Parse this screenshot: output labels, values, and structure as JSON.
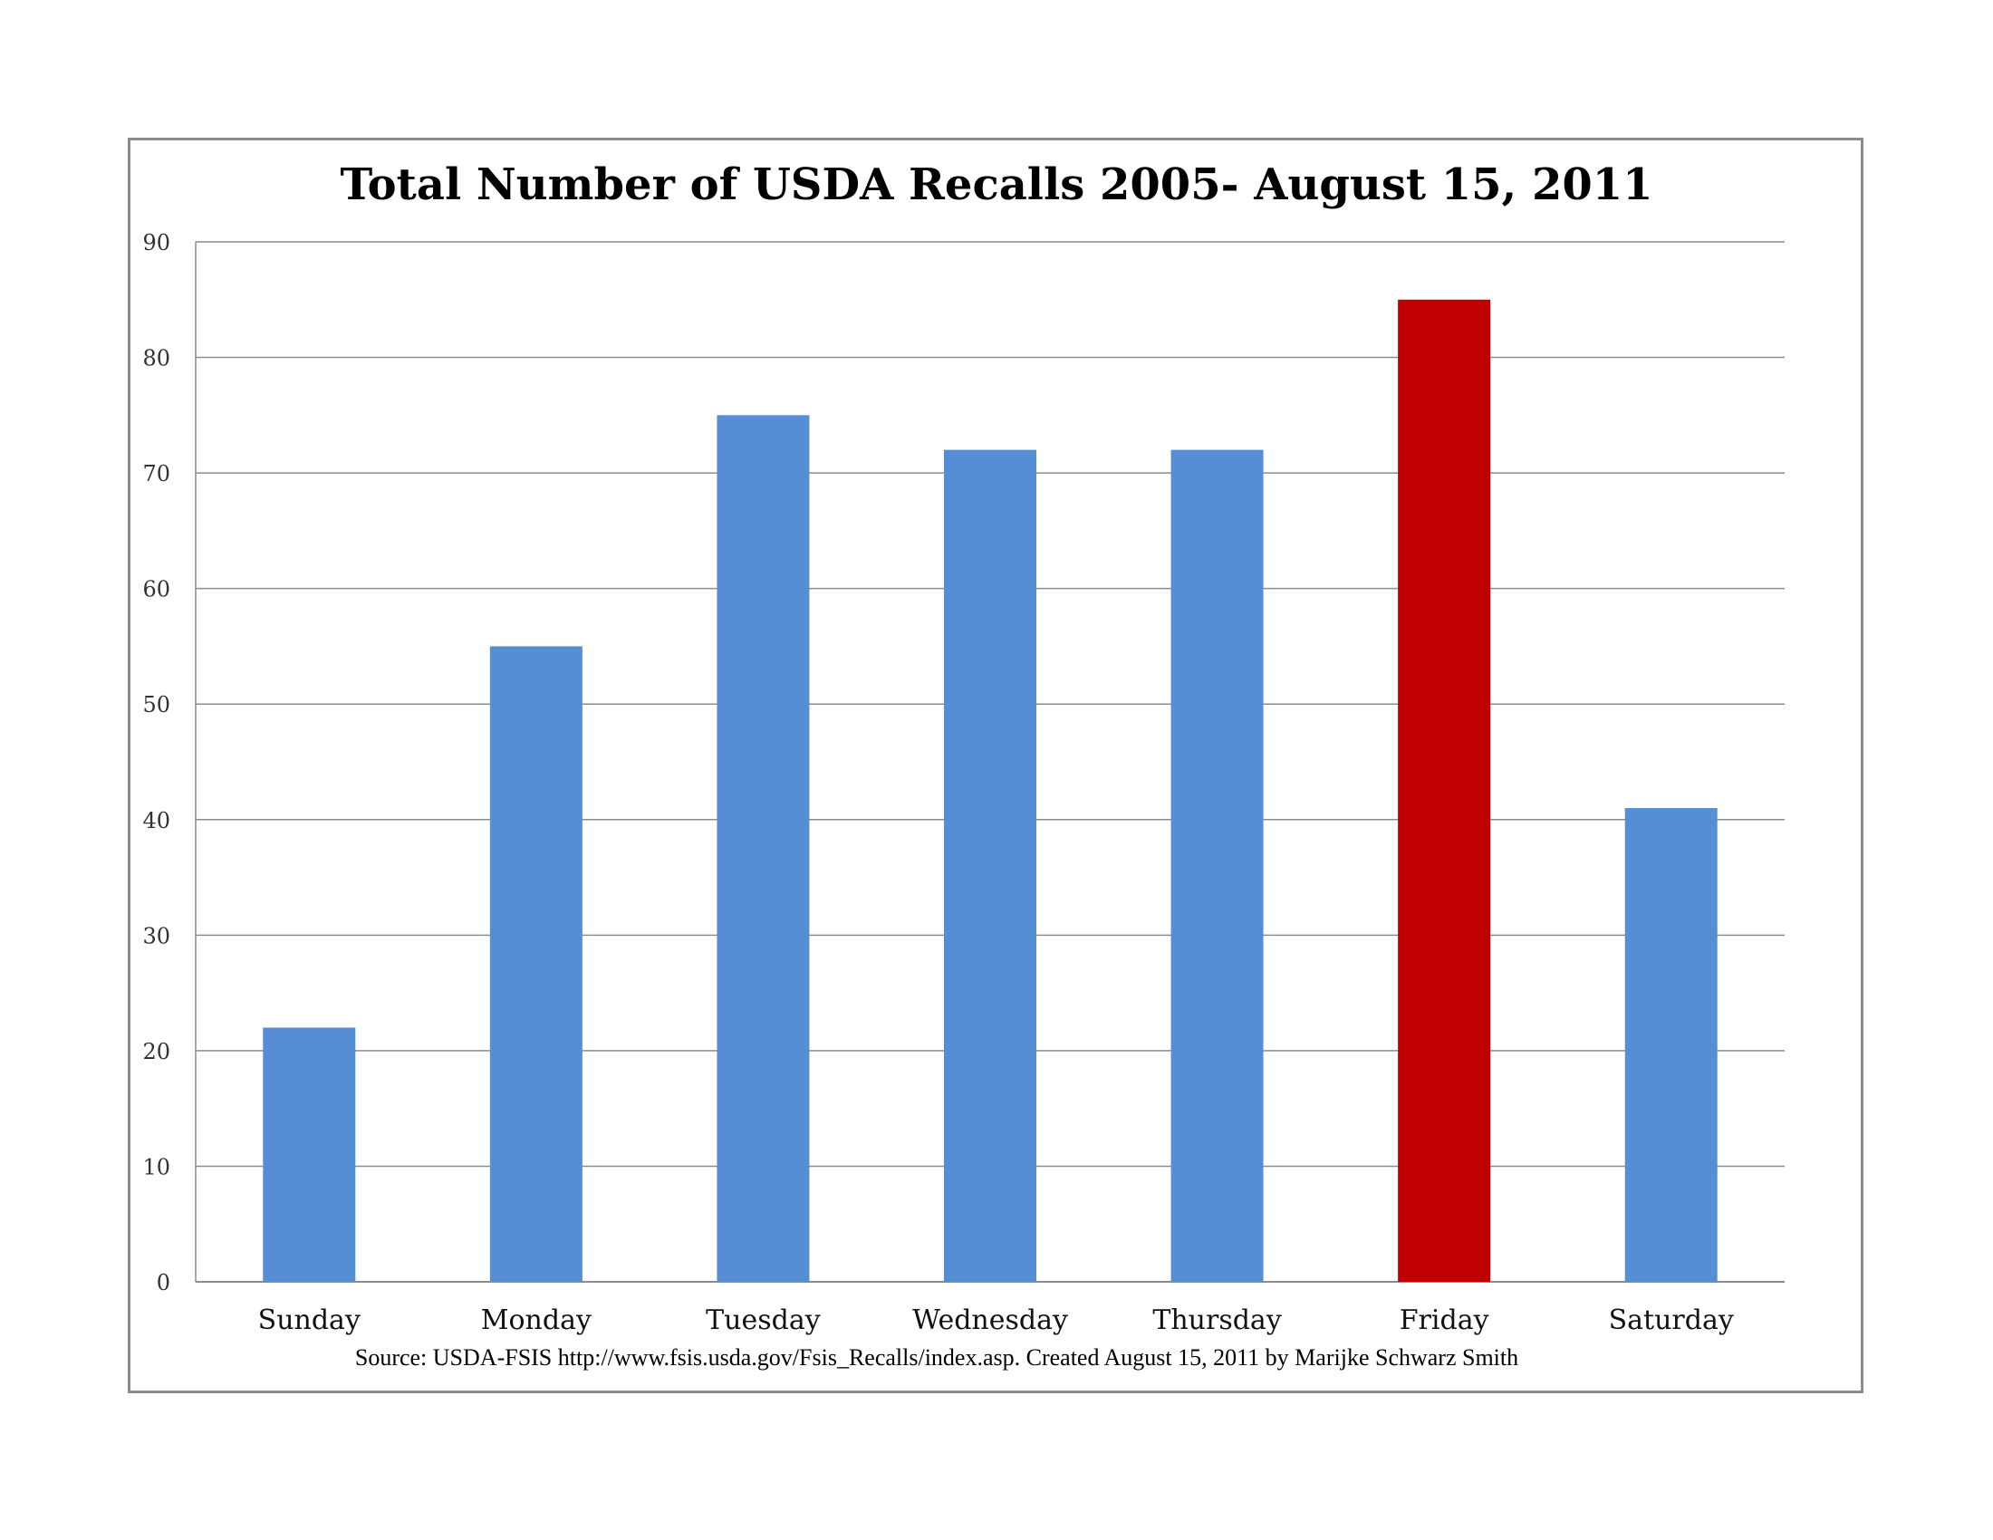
{
  "chart_data": {
    "type": "bar",
    "title": "Total Number of USDA Recalls 2005- August 15, 2011",
    "xlabel": "",
    "ylabel": "",
    "categories": [
      "Sunday",
      "Monday",
      "Tuesday",
      "Wednesday",
      "Thursday",
      "Friday",
      "Saturday"
    ],
    "values": [
      22,
      55,
      75,
      72,
      72,
      85,
      41
    ],
    "bar_colors": [
      "#558ed5",
      "#558ed5",
      "#558ed5",
      "#558ed5",
      "#558ed5",
      "#c00000",
      "#558ed5"
    ],
    "ylim": [
      0,
      90
    ],
    "yticks": [
      0,
      10,
      20,
      30,
      40,
      50,
      60,
      70,
      80,
      90
    ],
    "grid": true,
    "legend": "none",
    "source_note": "Source: USDA-FSIS http://www.fsis.usda.gov/Fsis_Recalls/index.asp.  Created August 15, 2011 by Marijke Schwarz Smith"
  }
}
